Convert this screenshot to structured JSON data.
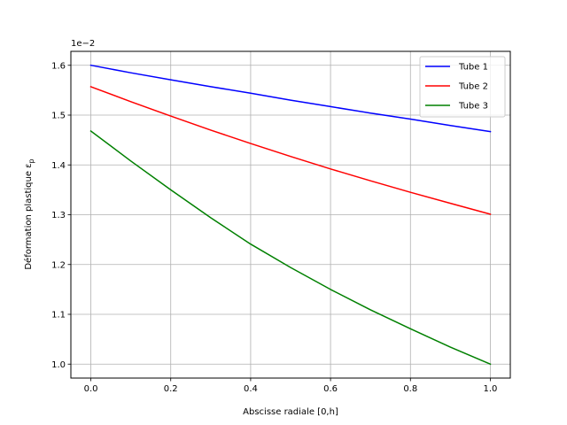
{
  "chart_data": {
    "type": "line",
    "title": "",
    "xlabel": "Abscisse radiale [0,h]",
    "ylabel": "Déformation plastique ε",
    "ylabel_subscript": "p",
    "y_offset_label": "1e−2",
    "xlim": [
      -0.05,
      1.05
    ],
    "ylim": [
      0.972,
      1.628
    ],
    "x_ticks": [
      0.0,
      0.2,
      0.4,
      0.6,
      0.8,
      1.0
    ],
    "x_tick_labels": [
      "0.0",
      "0.2",
      "0.4",
      "0.6",
      "0.8",
      "1.0"
    ],
    "y_ticks": [
      1.0,
      1.1,
      1.2,
      1.3,
      1.4,
      1.5,
      1.6
    ],
    "y_tick_labels": [
      "1.0",
      "1.1",
      "1.2",
      "1.3",
      "1.4",
      "1.5",
      "1.6"
    ],
    "grid": true,
    "legend_position": "top-right",
    "x": [
      0.0,
      0.1,
      0.2,
      0.3,
      0.4,
      0.5,
      0.6,
      0.7,
      0.8,
      0.9,
      1.0
    ],
    "series": [
      {
        "name": "Tube 1",
        "color": "#0000ff",
        "values": [
          1.6,
          1.585,
          1.571,
          1.557,
          1.544,
          1.53,
          1.517,
          1.504,
          1.492,
          1.479,
          1.467
        ]
      },
      {
        "name": "Tube 2",
        "color": "#ff0000",
        "values": [
          1.557,
          1.527,
          1.498,
          1.47,
          1.443,
          1.417,
          1.392,
          1.368,
          1.345,
          1.323,
          1.301
        ]
      },
      {
        "name": "Tube 3",
        "color": "#008000",
        "values": [
          1.468,
          1.408,
          1.35,
          1.294,
          1.241,
          1.194,
          1.15,
          1.109,
          1.071,
          1.034,
          1.0
        ]
      }
    ]
  }
}
